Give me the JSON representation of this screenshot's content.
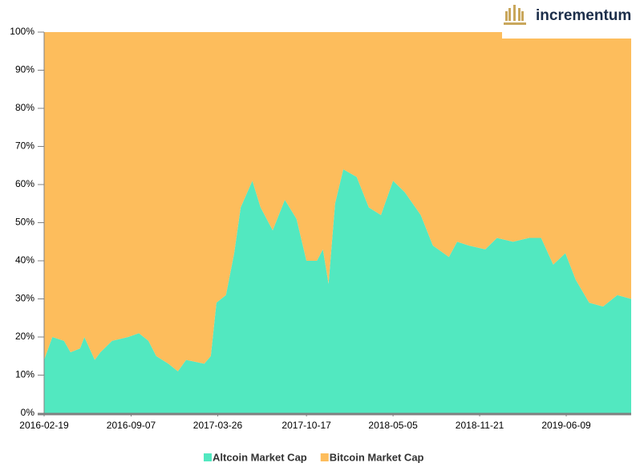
{
  "chart_data": {
    "type": "stacked_area",
    "logo": "incrementum",
    "x": [
      "2016-02-19",
      "2016-03-09",
      "2016-04-05",
      "2016-04-20",
      "2016-05-12",
      "2016-05-22",
      "2016-06-15",
      "2016-06-28",
      "2016-07-25",
      "2016-08-31",
      "2016-09-25",
      "2016-10-17",
      "2016-11-04",
      "2016-12-02",
      "2016-12-24",
      "2017-01-12",
      "2017-02-23",
      "2017-03-10",
      "2017-03-23",
      "2017-04-14",
      "2017-05-03",
      "2017-05-18",
      "2017-06-14",
      "2017-07-03",
      "2017-07-31",
      "2017-08-28",
      "2017-09-24",
      "2017-10-17",
      "2017-11-10",
      "2017-11-24",
      "2017-12-07",
      "2017-12-22",
      "2018-01-10",
      "2018-02-10",
      "2018-03-10",
      "2018-04-07",
      "2018-05-05",
      "2018-06-01",
      "2018-07-08",
      "2018-08-05",
      "2018-09-11",
      "2018-09-30",
      "2018-10-27",
      "2018-12-04",
      "2018-12-31",
      "2019-02-06",
      "2019-03-15",
      "2019-04-12",
      "2019-05-10",
      "2019-06-07",
      "2019-07-01",
      "2019-08-01",
      "2019-09-02",
      "2019-10-05",
      "2019-11-06"
    ],
    "series": [
      {
        "name": "Altcoin Market Cap",
        "color": "#52e8c0",
        "values": [
          14,
          20,
          19,
          16,
          17,
          20,
          14,
          16,
          19,
          20,
          21,
          19,
          15,
          13,
          11,
          14,
          13,
          15,
          29,
          31,
          42,
          54,
          61,
          54,
          48,
          56,
          51,
          40,
          40,
          43,
          34,
          55,
          64,
          62,
          54,
          52,
          61,
          58,
          52,
          44,
          41,
          45,
          44,
          43,
          46,
          45,
          46,
          46,
          39,
          42,
          35,
          29,
          28,
          31,
          30
        ]
      },
      {
        "name": "Bitcoin Market Cap",
        "color": "#fdbd5c",
        "values": [
          86,
          80,
          81,
          84,
          83,
          80,
          86,
          84,
          81,
          80,
          79,
          81,
          85,
          87,
          89,
          86,
          87,
          85,
          71,
          69,
          58,
          46,
          39,
          46,
          52,
          44,
          49,
          60,
          60,
          57,
          66,
          45,
          36,
          38,
          46,
          48,
          39,
          42,
          48,
          56,
          59,
          55,
          56,
          57,
          54,
          55,
          54,
          54,
          61,
          58,
          65,
          71,
          72,
          69,
          70
        ]
      }
    ],
    "xlim": [
      "2016-02-19",
      "2019-11-06"
    ],
    "xticks": [
      "2016-02-19",
      "2016-09-07",
      "2017-03-26",
      "2017-10-17",
      "2018-05-05",
      "2018-11-21",
      "2019-06-09"
    ],
    "ylim": [
      0,
      100
    ],
    "yticks": [
      {
        "value": 0,
        "label": "0%"
      },
      {
        "value": 10,
        "label": "10%"
      },
      {
        "value": 20,
        "label": "20%"
      },
      {
        "value": 30,
        "label": "30%"
      },
      {
        "value": 40,
        "label": "40%"
      },
      {
        "value": 50,
        "label": "50%"
      },
      {
        "value": 60,
        "label": "60%"
      },
      {
        "value": 70,
        "label": "70%"
      },
      {
        "value": 80,
        "label": "80%"
      },
      {
        "value": 90,
        "label": "90%"
      },
      {
        "value": 100,
        "label": "100%"
      }
    ],
    "legend": "bottom"
  }
}
